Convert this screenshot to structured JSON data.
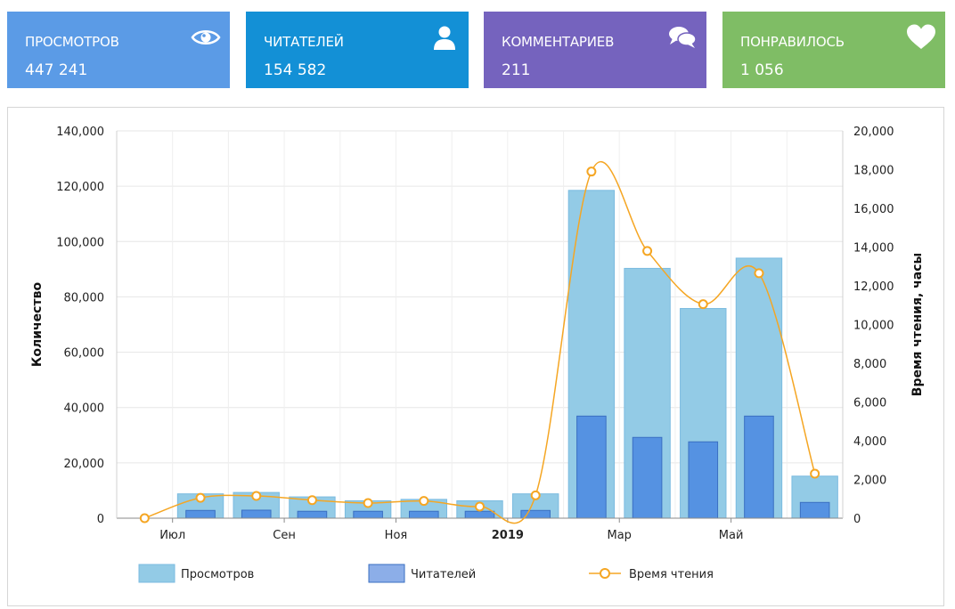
{
  "stats": [
    {
      "label": "ПРОСМОТРОВ",
      "value": "447 241",
      "color": "#5b9be6",
      "icon": "eye-icon"
    },
    {
      "label": "ЧИТАТЕЛЕЙ",
      "value": "154 582",
      "color": "#1390d6",
      "icon": "user-icon"
    },
    {
      "label": "КОММЕНТАРИЕВ",
      "value": "211",
      "color": "#7563be",
      "icon": "comments-icon"
    },
    {
      "label": "ПОНРАВИЛОСЬ",
      "value": "1 056",
      "color": "#7fbd65",
      "icon": "heart-icon"
    }
  ],
  "chart_data": {
    "type": "bar",
    "categories": [
      "2018-06",
      "2018-07",
      "2018-08",
      "2018-09",
      "2018-10",
      "2018-11",
      "2018-12",
      "2019-01",
      "2019-02",
      "2019-03",
      "2019-04",
      "2019-05",
      "2019-06"
    ],
    "x_tick_labels": [
      "Июл",
      "Сен",
      "Ноя",
      "2019",
      "Мар",
      "Май"
    ],
    "series": [
      {
        "name": "Просмотров",
        "type": "bar",
        "axis": "left",
        "color": "#93cbe6",
        "values": [
          0,
          8800,
          9300,
          7700,
          6300,
          6800,
          6300,
          8800,
          118500,
          90300,
          75800,
          94000,
          15200
        ]
      },
      {
        "name": "Читателей",
        "type": "bar",
        "axis": "left",
        "color": "#5592e2",
        "values": [
          0,
          2800,
          2900,
          2500,
          2500,
          2500,
          2500,
          2800,
          36900,
          29200,
          27600,
          36900,
          5700
        ]
      },
      {
        "name": "Время чтения",
        "type": "line",
        "axis": "right",
        "color": "#f5a623",
        "values": [
          0,
          1050,
          1150,
          930,
          780,
          890,
          600,
          1180,
          17900,
          13800,
          11050,
          12650,
          2300
        ]
      }
    ],
    "ylabel": "Количество",
    "ylim": [
      0,
      140000
    ],
    "y_ticks": [
      "0",
      "20,000",
      "40,000",
      "60,000",
      "80,000",
      "100,000",
      "120,000",
      "140,000"
    ],
    "y2label": "Время чтения, часы",
    "y2lim": [
      0,
      20000
    ],
    "y2_ticks": [
      "0",
      "2,000",
      "4,000",
      "6,000",
      "8,000",
      "10,000",
      "12,000",
      "14,000",
      "16,000",
      "18,000",
      "20,000"
    ],
    "legend_position": "bottom-left",
    "grid": true
  }
}
